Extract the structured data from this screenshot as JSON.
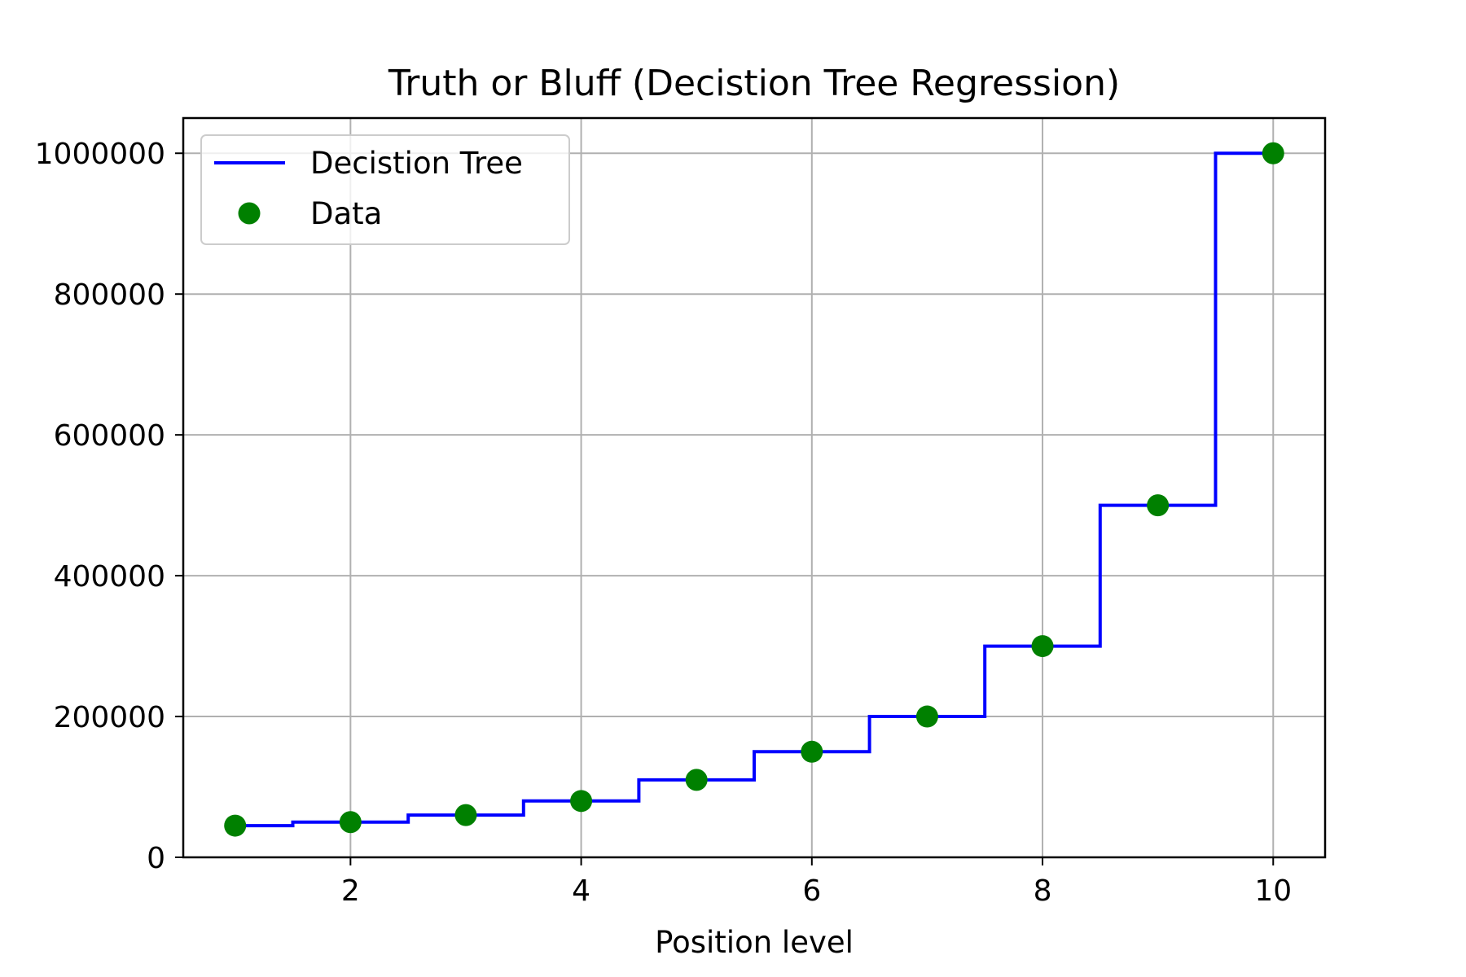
{
  "chart_data": {
    "type": "line",
    "title": "Truth or Bluff (Decistion Tree Regression)",
    "xlabel": "Position level",
    "ylabel": "",
    "xlim": [
      0.55,
      10.45
    ],
    "ylim": [
      0,
      1050000
    ],
    "grid": true,
    "legend_position": "top-left",
    "x_ticks": [
      2,
      4,
      6,
      8,
      10
    ],
    "x_tick_labels": [
      "2",
      "4",
      "6",
      "8",
      "10"
    ],
    "y_ticks": [
      0,
      200000,
      400000,
      600000,
      800000,
      1000000
    ],
    "y_tick_labels": [
      "0",
      "200000",
      "400000",
      "600000",
      "800000",
      "1000000"
    ],
    "series": [
      {
        "name": "Decistion Tree",
        "kind": "step",
        "color": "#0000ff",
        "x": [
          1,
          1.5,
          1.5,
          2.5,
          2.5,
          3.5,
          3.5,
          4.5,
          4.5,
          5.5,
          5.5,
          6.5,
          6.5,
          7.5,
          7.5,
          8.5,
          8.5,
          9.5,
          9.5,
          10
        ],
        "y": [
          45000,
          45000,
          50000,
          50000,
          60000,
          60000,
          80000,
          80000,
          110000,
          110000,
          150000,
          150000,
          200000,
          200000,
          300000,
          300000,
          500000,
          500000,
          1000000,
          1000000
        ]
      },
      {
        "name": "Data",
        "kind": "scatter",
        "color": "#008000",
        "x": [
          1,
          2,
          3,
          4,
          5,
          6,
          7,
          8,
          9,
          10
        ],
        "y": [
          45000,
          50000,
          60000,
          80000,
          110000,
          150000,
          200000,
          300000,
          500000,
          1000000
        ]
      }
    ]
  },
  "colors": {
    "grid": "#b0b0b0",
    "axes": "#000000",
    "legend_border": "#cccccc"
  }
}
